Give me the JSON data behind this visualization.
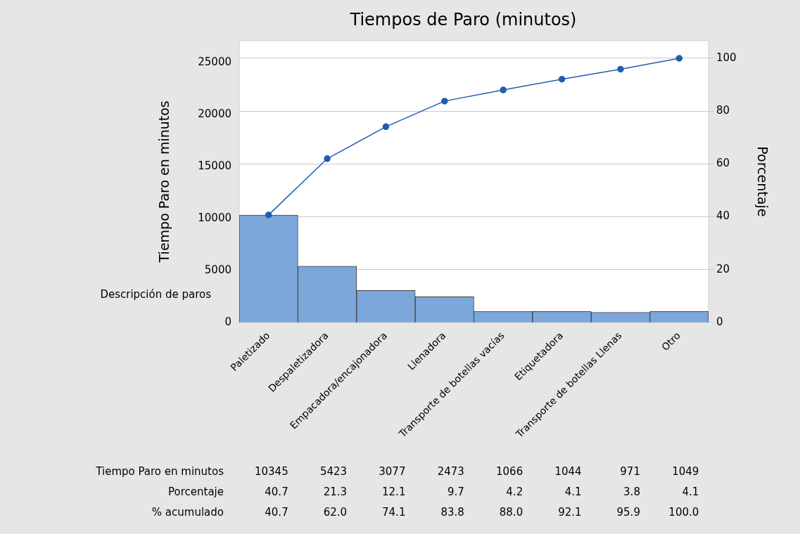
{
  "chart_data": {
    "type": "bar",
    "title": "Tiempos de Paro (minutos)",
    "xlabel": "Descripción de paros",
    "ylabel": "Tiempo Paro en minutos",
    "y2label": "Porcentaje",
    "categories": [
      "Paletizado",
      "Despaletizadora",
      "Empacadora/encajonadora",
      "Llenadora",
      "Transporte de botellas vacías",
      "Etiquetadora",
      "Transporte de botellas Llenas",
      "Otro"
    ],
    "series": [
      {
        "color": "#7ba7da",
        "values": [
          10345,
          5423,
          3077,
          2473,
          1066,
          1044,
          971,
          1049
        ]
      },
      {
        "type": "line",
        "axis": "y2",
        "color": "#1f5db0",
        "values": [
          40.7,
          62.0,
          74.1,
          83.8,
          88.0,
          92.1,
          95.9,
          100.0
        ],
        "value_labels": [
          "40.7",
          "62.0",
          "74.1",
          "83.8",
          "88.0",
          "92.1",
          "95.9",
          "100.0"
        ]
      }
    ],
    "annotations": [
      "Tiempo Paro en minutos",
      "Porcentaje",
      "% acumulado",
      "40.7",
      "21.3",
      "12.1",
      "9.7",
      "4.2",
      "4.1",
      "3.8",
      "4.1"
    ],
    "data_labels": true,
    "ylim": [
      0,
      27150
    ],
    "yticks": [
      0,
      5000,
      10000,
      15000,
      20000,
      25000
    ],
    "y2lim": [
      0,
      106.7
    ],
    "y2ticks": [
      0,
      20,
      40,
      60,
      80,
      100
    ],
    "grid": "y2",
    "marker": "circle",
    "legend": false
  }
}
